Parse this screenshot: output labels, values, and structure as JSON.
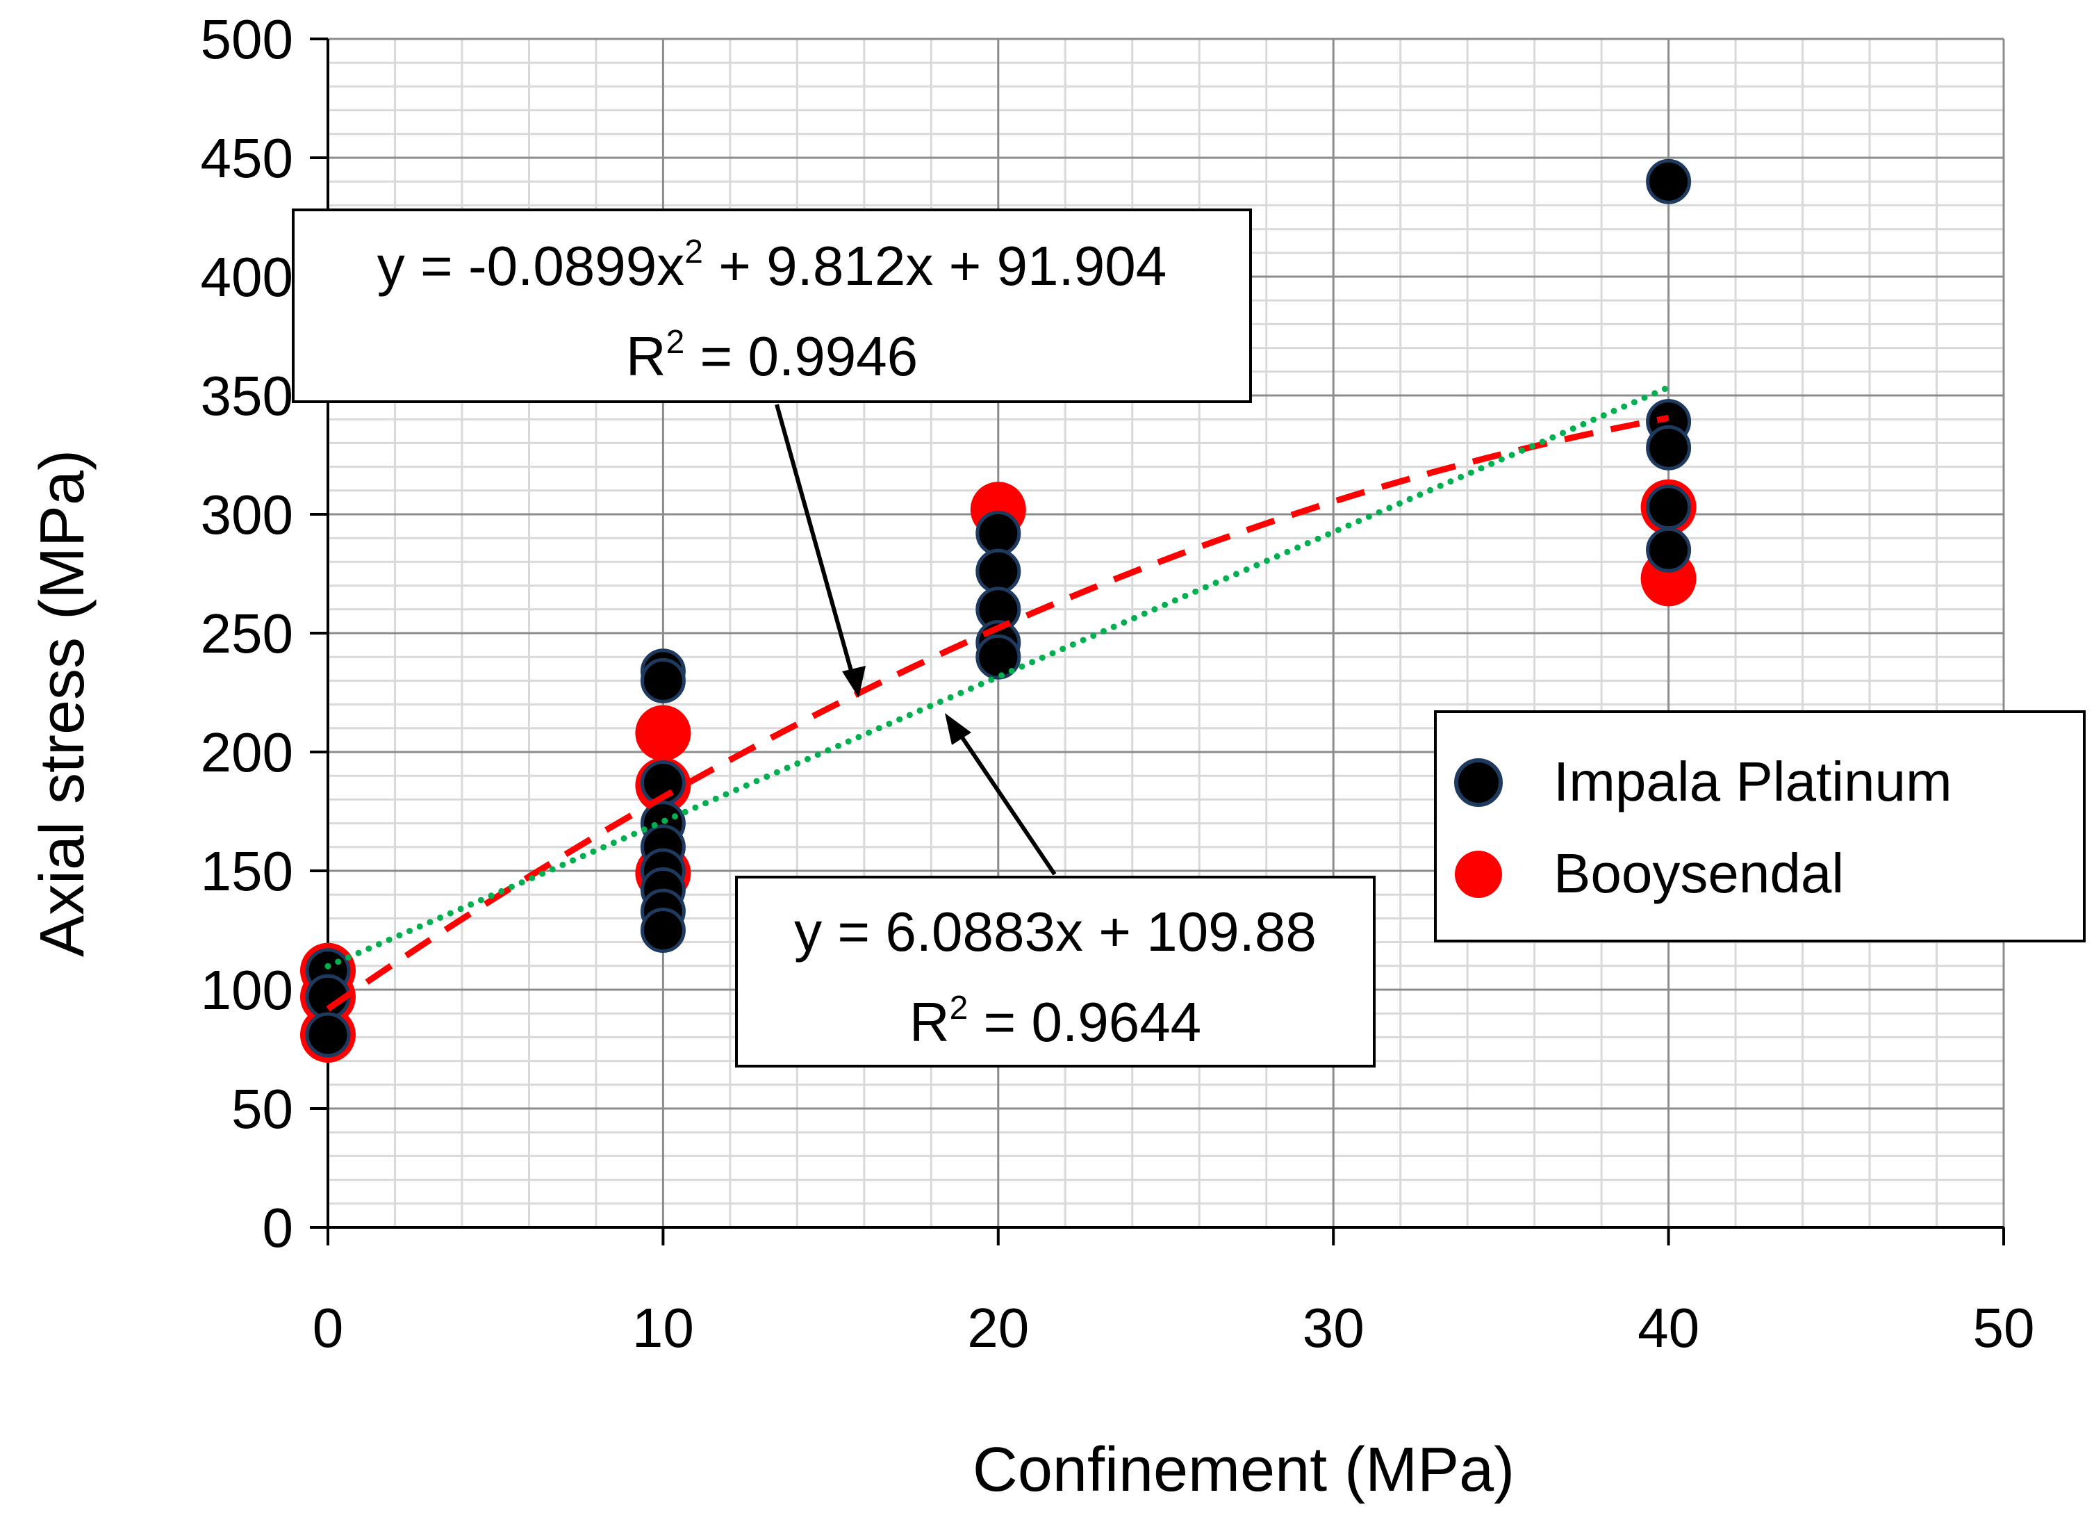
{
  "chart_data": {
    "type": "scatter",
    "xlabel": "Confinement (MPa)",
    "ylabel": "Axial stress (MPa)",
    "xlim": [
      0,
      50
    ],
    "ylim": [
      0,
      500
    ],
    "x_ticks": [
      0,
      10,
      20,
      30,
      40,
      50
    ],
    "y_ticks": [
      0,
      50,
      100,
      150,
      200,
      250,
      300,
      350,
      400,
      450,
      500
    ],
    "x_tick_labels": [
      "0",
      "10",
      "20",
      "30",
      "40",
      "50"
    ],
    "y_tick_labels": [
      "0",
      "50",
      "100",
      "150",
      "200",
      "250",
      "300",
      "350",
      "400",
      "450",
      "500"
    ],
    "grid": true,
    "legend_position": "right",
    "series": [
      {
        "name": "Booysendal",
        "color": "#ff0000",
        "points": [
          {
            "x": 0,
            "y": 108
          },
          {
            "x": 0,
            "y": 97
          },
          {
            "x": 0,
            "y": 81
          },
          {
            "x": 10,
            "y": 208
          },
          {
            "x": 10,
            "y": 186
          },
          {
            "x": 10,
            "y": 149
          },
          {
            "x": 20,
            "y": 302
          },
          {
            "x": 40,
            "y": 303
          },
          {
            "x": 40,
            "y": 273
          }
        ]
      },
      {
        "name": "Impala Platinum",
        "color": "#000000",
        "edge_color": "#1f3a5f",
        "points": [
          {
            "x": 0,
            "y": 108
          },
          {
            "x": 0,
            "y": 97
          },
          {
            "x": 0,
            "y": 81
          },
          {
            "x": 10,
            "y": 234
          },
          {
            "x": 10,
            "y": 230
          },
          {
            "x": 10,
            "y": 187
          },
          {
            "x": 10,
            "y": 170
          },
          {
            "x": 10,
            "y": 160
          },
          {
            "x": 10,
            "y": 150
          },
          {
            "x": 10,
            "y": 142
          },
          {
            "x": 10,
            "y": 133
          },
          {
            "x": 10,
            "y": 125
          },
          {
            "x": 20,
            "y": 292
          },
          {
            "x": 20,
            "y": 276
          },
          {
            "x": 20,
            "y": 260
          },
          {
            "x": 20,
            "y": 246
          },
          {
            "x": 20,
            "y": 240
          },
          {
            "x": 40,
            "y": 440
          },
          {
            "x": 40,
            "y": 339
          },
          {
            "x": 40,
            "y": 328
          },
          {
            "x": 40,
            "y": 303
          },
          {
            "x": 40,
            "y": 285
          }
        ]
      }
    ],
    "trendlines": [
      {
        "type": "polynomial",
        "style": "dashed",
        "color": "#ff0000",
        "coefficients": [
          -0.0899,
          9.812,
          91.904
        ],
        "x_range": [
          0,
          40
        ],
        "equation": "y = -0.0899x² + 9.812x + 91.904",
        "eq_prefix": "y = -0.0899x",
        "eq_sup": "2",
        "eq_suffix": " + 9.812x + 91.904",
        "r2": "0.9946"
      },
      {
        "type": "linear",
        "style": "dotted",
        "color": "#00b050",
        "coefficients": [
          6.0883,
          109.88
        ],
        "x_range": [
          0,
          40
        ],
        "equation": "y = 6.0883x + 109.88",
        "r2": "0.9644"
      }
    ],
    "r2_prefix": "R",
    "r2_sup": "2",
    "r2_mid": " = "
  }
}
